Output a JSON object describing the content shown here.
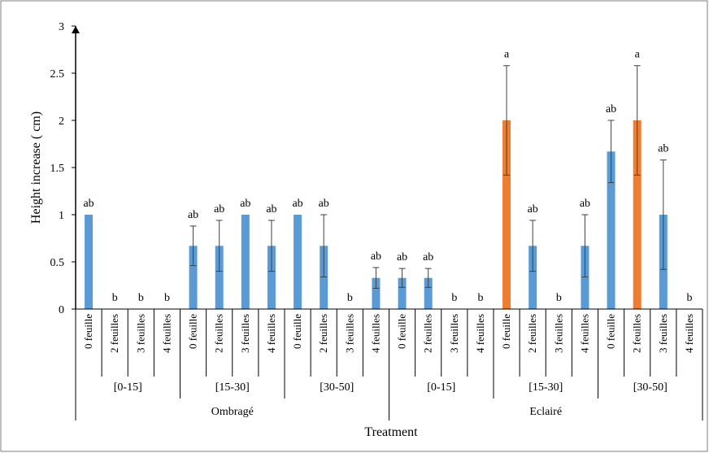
{
  "chart_data": {
    "type": "bar",
    "title": "",
    "xlabel": "Treatment",
    "ylabel": "Height increase ( cm)",
    "ylim": [
      0,
      3
    ],
    "yticks": [
      "0",
      "0.5",
      "1",
      "1.5",
      "2",
      "2.5",
      "3"
    ],
    "ytick_values": [
      0,
      0.5,
      1,
      1.5,
      2,
      2.5,
      3
    ],
    "grid": false,
    "legend": "none",
    "colors": {
      "default": "#5b9bd5",
      "highlight": "#ed7d31"
    },
    "top_groups": [
      {
        "label": "Ombragé",
        "subgroups": 3
      },
      {
        "label": "Eclairé",
        "subgroups": 3
      }
    ],
    "subgroups": [
      "[0-15]",
      "[15-30]",
      "[30-50]",
      "[0-15]",
      "[15-30]",
      "[30-50]"
    ],
    "categories": [
      "0 feuille",
      "2 feuilles",
      "3 feuilles",
      "4 feuilles",
      "0 feuille",
      "2 feuilles",
      "3 feuilles",
      "4 feuilles",
      "0 feuille",
      "2 feuilles",
      "3 feuilles",
      "4 feuilles",
      "0 feuille",
      "2 feuilles",
      "3 feuilles",
      "4 feuilles",
      "0 feuille",
      "2 feuilles",
      "3 feuilles",
      "4 feuilles",
      "0 feuille",
      "2 feuilles",
      "3 feuilles",
      "4 feuilles"
    ],
    "values": [
      1,
      0,
      0,
      0,
      0.67,
      0.67,
      1,
      0.67,
      1,
      0.67,
      0,
      0.33,
      0.33,
      0.33,
      0,
      0,
      2,
      0.67,
      0,
      0.67,
      1.67,
      2,
      1,
      0
    ],
    "errors": [
      0,
      0,
      0,
      0,
      0.21,
      0.27,
      0,
      0.27,
      0,
      0.33,
      0,
      0.11,
      0.1,
      0.1,
      0,
      0,
      0.58,
      0.27,
      0,
      0.33,
      0.33,
      0.58,
      0.58,
      0
    ],
    "letters": [
      "ab",
      "b",
      "b",
      "b",
      "ab",
      "ab",
      "ab",
      "ab",
      "ab",
      "ab",
      "b",
      "ab",
      "ab",
      "ab",
      "b",
      "b",
      "a",
      "ab",
      "b",
      "ab",
      "ab",
      "a",
      "ab",
      "b"
    ],
    "highlighted": [
      16,
      21
    ]
  }
}
